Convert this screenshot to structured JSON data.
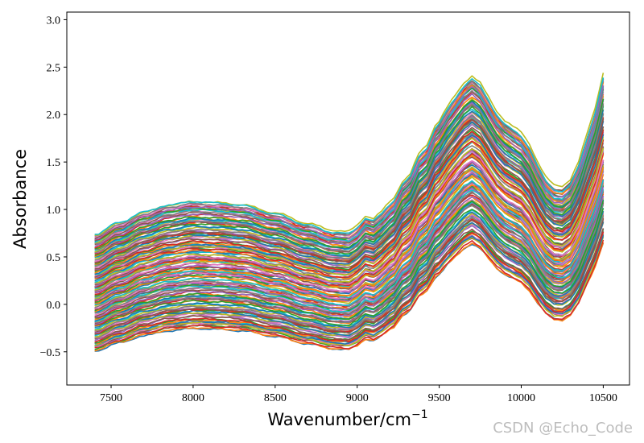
{
  "chart_data": {
    "type": "line",
    "title": "",
    "xlabel": "Wavenumber/cm",
    "xlabel_superscript": "−1",
    "ylabel": "Absorbance",
    "xlim": [
      7230,
      10660
    ],
    "ylim": [
      -0.85,
      3.08
    ],
    "xticks": [
      7500,
      8000,
      8500,
      9000,
      9500,
      10000,
      10500
    ],
    "xtick_labels": [
      "7500",
      "8000",
      "8500",
      "9000",
      "9500",
      "10000",
      "10500"
    ],
    "yticks": [
      -0.5,
      0.0,
      0.5,
      1.0,
      1.5,
      2.0,
      2.5,
      3.0
    ],
    "ytick_labels": [
      "−0.5",
      "0.0",
      "0.5",
      "1.0",
      "1.5",
      "2.0",
      "2.5",
      "3.0"
    ],
    "x_start": 7400,
    "x_end": 10500,
    "x_step": 25,
    "series_count": 150,
    "palette": [
      "#1f77b4",
      "#ff7f0e",
      "#2ca02c",
      "#d62728",
      "#9467bd",
      "#8c564b",
      "#e377c2",
      "#7f7f7f",
      "#bcbd22",
      "#17becf"
    ],
    "base_profile": {
      "x": [
        7400,
        7550,
        7700,
        7850,
        8000,
        8150,
        8300,
        8500,
        8700,
        8850,
        8950,
        9000,
        9050,
        9100,
        9150,
        9200,
        9300,
        9400,
        9500,
        9550,
        9600,
        9650,
        9700,
        9750,
        9800,
        9850,
        9900,
        9950,
        10000,
        10050,
        10100,
        10150,
        10200,
        10250,
        10300,
        10350,
        10400,
        10450,
        10500
      ],
      "y": [
        -0.05,
        0.05,
        0.14,
        0.2,
        0.23,
        0.22,
        0.2,
        0.13,
        0.04,
        -0.02,
        -0.03,
        0.02,
        0.1,
        0.08,
        0.14,
        0.22,
        0.42,
        0.66,
        0.9,
        1.02,
        1.12,
        1.22,
        1.28,
        1.22,
        1.1,
        0.98,
        0.9,
        0.85,
        0.8,
        0.7,
        0.55,
        0.42,
        0.35,
        0.34,
        0.4,
        0.55,
        0.78,
        1.0,
        1.3
      ]
    },
    "series_range": {
      "lowest": {
        "offset": -0.45,
        "scale": 0.85
      },
      "highest": {
        "offset": 0.8,
        "scale": 1.25
      }
    }
  },
  "watermark": "CSDN @Echo_Code"
}
